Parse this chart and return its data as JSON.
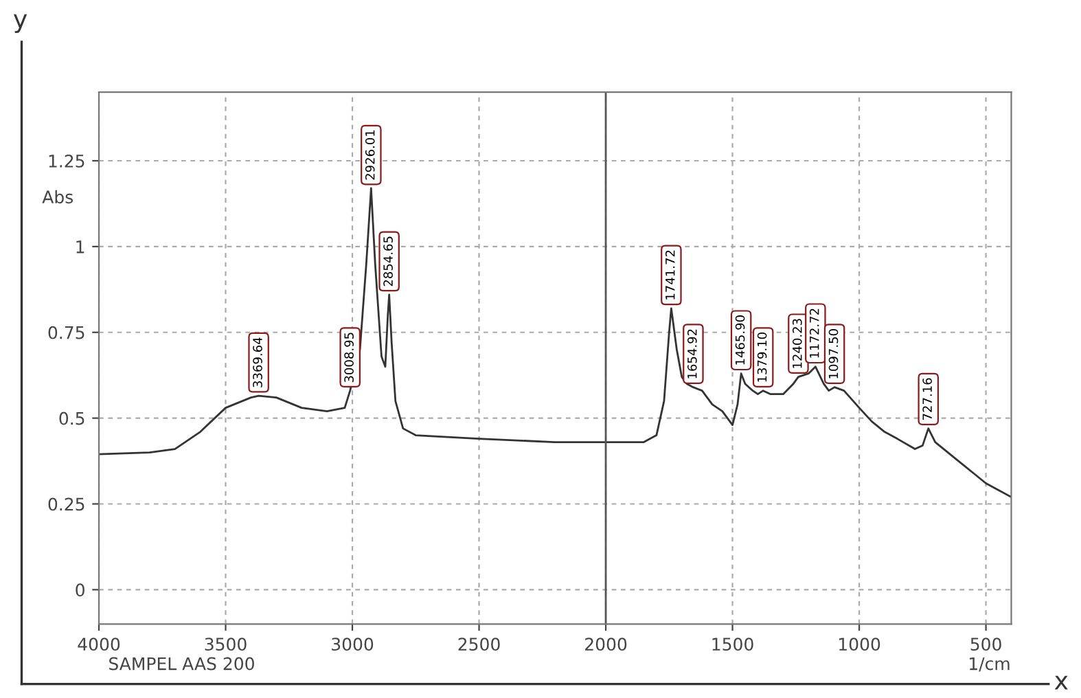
{
  "chart_data": {
    "type": "line",
    "xlabel": "1/cm",
    "ylabel": "Abs",
    "x": [
      4000,
      3800,
      3700,
      3600,
      3500,
      3400,
      3369.64,
      3300,
      3200,
      3100,
      3030,
      3008.95,
      2970,
      2945,
      2926.01,
      2910,
      2885,
      2870,
      2860,
      2854.65,
      2845,
      2830,
      2800,
      2750,
      2500,
      2200,
      2000,
      1850,
      1800,
      1770,
      1750,
      1741.72,
      1720,
      1700,
      1680,
      1654.92,
      1620,
      1580,
      1540,
      1500,
      1480,
      1465.9,
      1450,
      1420,
      1400,
      1379.1,
      1350,
      1300,
      1260,
      1240.23,
      1200,
      1172.72,
      1140,
      1120,
      1097.5,
      1060,
      1000,
      950,
      900,
      850,
      780,
      750,
      727.16,
      700,
      650,
      600,
      550,
      500,
      450,
      400
    ],
    "series": [
      {
        "color": "#333333",
        "values": [
          0.395,
          0.4,
          0.41,
          0.46,
          0.53,
          0.56,
          0.565,
          0.56,
          0.53,
          0.52,
          0.53,
          0.58,
          0.7,
          0.95,
          1.17,
          0.95,
          0.68,
          0.65,
          0.8,
          0.86,
          0.72,
          0.55,
          0.47,
          0.45,
          0.44,
          0.43,
          0.43,
          0.43,
          0.45,
          0.55,
          0.75,
          0.82,
          0.7,
          0.62,
          0.6,
          0.59,
          0.58,
          0.54,
          0.52,
          0.48,
          0.54,
          0.63,
          0.6,
          0.58,
          0.57,
          0.58,
          0.57,
          0.57,
          0.6,
          0.62,
          0.63,
          0.65,
          0.6,
          0.58,
          0.59,
          0.58,
          0.53,
          0.49,
          0.46,
          0.44,
          0.41,
          0.42,
          0.47,
          0.43,
          0.4,
          0.37,
          0.34,
          0.31,
          0.29,
          0.27
        ]
      }
    ],
    "xlim": [
      4000,
      400
    ],
    "ylim": [
      -0.1,
      1.45
    ],
    "xticks": [
      4000,
      3500,
      3000,
      2500,
      2000,
      1500,
      1000,
      500
    ],
    "yticks": [
      0,
      0.25,
      0.5,
      0.75,
      1,
      1.25
    ],
    "grid": true,
    "line_style": "solid",
    "marker": "none",
    "ref_lines": [
      {
        "axis": "x",
        "value": 2000,
        "color": "#555555",
        "line_style": "solid"
      }
    ],
    "annotations": [
      "SAMPEL AAS 200",
      "y",
      "x",
      {
        "text": "3369.64",
        "x": 3369.64,
        "y": 0.565
      },
      {
        "text": "3008.95",
        "x": 3008.95,
        "y": 0.58
      },
      {
        "text": "2926.01",
        "x": 2926.01,
        "y": 1.17
      },
      {
        "text": "2854.65",
        "x": 2854.65,
        "y": 0.86
      },
      {
        "text": "1741.72",
        "x": 1741.72,
        "y": 0.82
      },
      {
        "text": "1654.92",
        "x": 1654.92,
        "y": 0.59
      },
      {
        "text": "1465.90",
        "x": 1465.9,
        "y": 0.63
      },
      {
        "text": "1379.10",
        "x": 1379.1,
        "y": 0.58
      },
      {
        "text": "1240.23",
        "x": 1240.23,
        "y": 0.62
      },
      {
        "text": "1172.72",
        "x": 1172.72,
        "y": 0.65
      },
      {
        "text": "1097.50",
        "x": 1097.5,
        "y": 0.59
      },
      {
        "text": "727.16",
        "x": 727.16,
        "y": 0.47
      }
    ]
  }
}
